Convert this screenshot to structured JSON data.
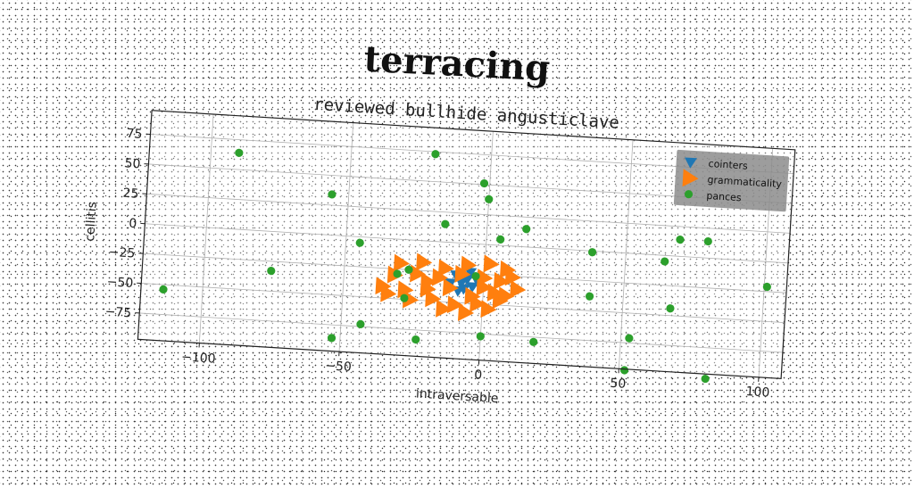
{
  "chart_data": {
    "type": "scatter",
    "title": "terracing",
    "subtitle": "reviewed bullhide angusticlave",
    "xlabel": "intraversable",
    "ylabel": "cellitis",
    "xlim": [
      -122,
      108
    ],
    "ylim": [
      -97,
      95
    ],
    "xticks": [
      -100,
      -50,
      0,
      50,
      100
    ],
    "yticks": [
      75,
      50,
      25,
      0,
      -25,
      -50,
      -75
    ],
    "xtick_labels": [
      "−100",
      "−50",
      "0",
      "50",
      "100"
    ],
    "ytick_labels": [
      "75",
      "50",
      "25",
      "0",
      "−25",
      "−50",
      "−75"
    ],
    "grid": true,
    "legend_position": "top-right",
    "series": [
      {
        "name": "cointers",
        "marker": "triangle-down",
        "color": "#1f77b4",
        "points": [
          [
            -10,
            -27
          ],
          [
            -8,
            -33
          ],
          [
            -6,
            -30
          ],
          [
            -4,
            -36
          ],
          [
            -2,
            -32
          ],
          [
            -12,
            -34
          ],
          [
            -7,
            -38
          ],
          [
            -3,
            -28
          ],
          [
            -9,
            -40
          ],
          [
            -5,
            -24
          ]
        ]
      },
      {
        "name": "grammaticality",
        "marker": "triangle-right",
        "color": "#ff7f0e",
        "points": [
          [
            -30,
            -20
          ],
          [
            -22,
            -18
          ],
          [
            -14,
            -22
          ],
          [
            -6,
            -18
          ],
          [
            2,
            -16
          ],
          [
            8,
            -20
          ],
          [
            -32,
            -30
          ],
          [
            -24,
            -28
          ],
          [
            -16,
            -30
          ],
          [
            -8,
            -26
          ],
          [
            0,
            -28
          ],
          [
            6,
            -30
          ],
          [
            10,
            -26
          ],
          [
            -36,
            -40
          ],
          [
            -28,
            -42
          ],
          [
            -20,
            -40
          ],
          [
            -12,
            -38
          ],
          [
            -4,
            -44
          ],
          [
            4,
            -40
          ],
          [
            12,
            -36
          ],
          [
            -26,
            -50
          ],
          [
            -18,
            -48
          ],
          [
            -10,
            -52
          ],
          [
            -2,
            -50
          ],
          [
            6,
            -46
          ],
          [
            -14,
            -56
          ],
          [
            -6,
            -58
          ],
          [
            2,
            -54
          ],
          [
            -20,
            -34
          ],
          [
            -34,
            -46
          ],
          [
            0,
            -36
          ],
          [
            8,
            -42
          ]
        ]
      },
      {
        "name": "pances",
        "marker": "circle",
        "color": "#2ca02c",
        "points": [
          [
            -90,
            64
          ],
          [
            -20,
            73
          ],
          [
            -2,
            51
          ],
          [
            0,
            38
          ],
          [
            -56,
            34
          ],
          [
            -15,
            15
          ],
          [
            14,
            15
          ],
          [
            5,
            5
          ],
          [
            -45,
            -5
          ],
          [
            -31,
            -29
          ],
          [
            -27,
            -25
          ],
          [
            -3,
            -27
          ],
          [
            -28,
            -49
          ],
          [
            -76,
            -33
          ],
          [
            -114,
            -54
          ],
          [
            -43,
            -73
          ],
          [
            -53,
            -86
          ],
          [
            -23,
            -83
          ],
          [
            0,
            -77
          ],
          [
            19,
            -79
          ],
          [
            38,
            -1
          ],
          [
            64,
            -5
          ],
          [
            69,
            14
          ],
          [
            79,
            14
          ],
          [
            101,
            -21
          ],
          [
            38,
            -38
          ],
          [
            67,
            -44
          ],
          [
            53,
            -71
          ],
          [
            52,
            -98
          ],
          [
            81,
            -101
          ]
        ]
      }
    ]
  }
}
